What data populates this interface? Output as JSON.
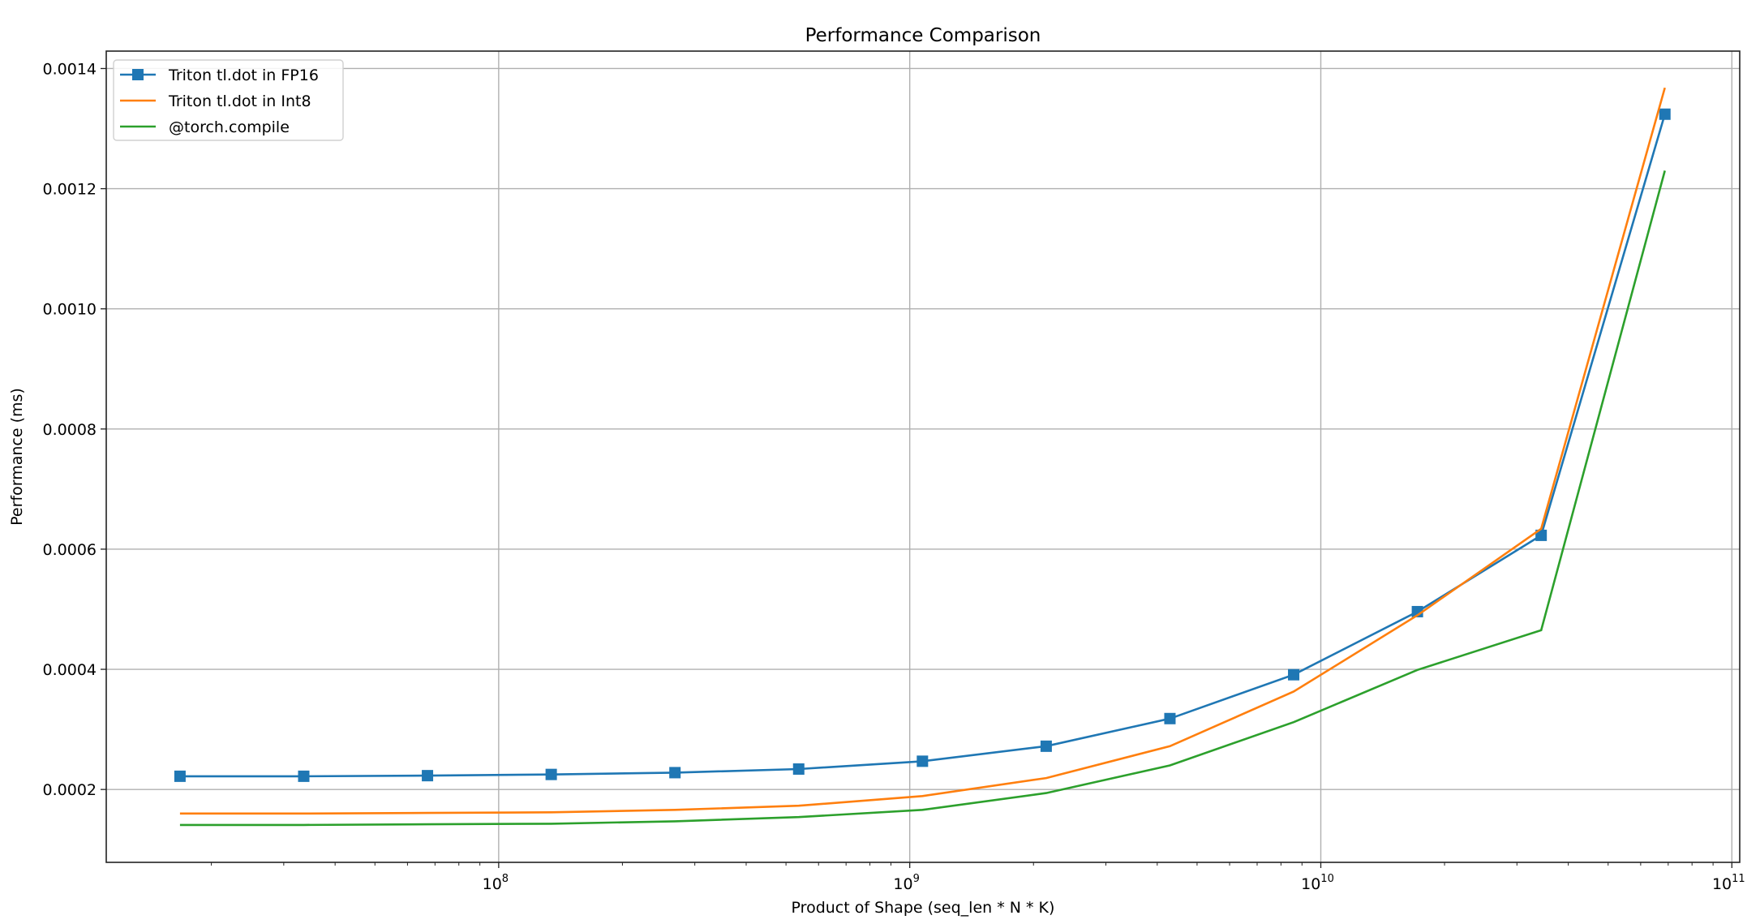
{
  "chart_data": {
    "type": "line",
    "title": "Performance Comparison",
    "xlabel": "Product of Shape (seq_len * N * K)",
    "ylabel": "Performance (ms)",
    "xscale": "log",
    "xlim": [
      11100000,
      104500000000
    ],
    "ylim": [
      7.87e-05,
      0.001429
    ],
    "grid": true,
    "legend_position": "top-left",
    "x_ticks": [
      100000000,
      1000000000,
      10000000000,
      100000000000
    ],
    "x_tick_labels": [
      {
        "base": "10",
        "exp": "8"
      },
      {
        "base": "10",
        "exp": "9"
      },
      {
        "base": "10",
        "exp": "10"
      },
      {
        "base": "10",
        "exp": "11"
      }
    ],
    "y_ticks": [
      0.0002,
      0.0004,
      0.0006,
      0.0008,
      0.001,
      0.0012,
      0.0014
    ],
    "y_tick_labels": [
      "0.0002",
      "0.0004",
      "0.0006",
      "0.0008",
      "0.0010",
      "0.0012",
      "0.0014"
    ],
    "x": [
      16777216,
      33554432,
      67108864,
      134217728,
      268435456,
      536870912,
      1073741824,
      2147483648,
      4294967296,
      8589934592,
      17179869184,
      34359738368,
      68719476736
    ],
    "series": [
      {
        "name": "Triton tl.dot in FP16",
        "color": "#1f77b4",
        "marker": "square",
        "values": [
          0.000222,
          0.000222,
          0.000223,
          0.000225,
          0.000228,
          0.000234,
          0.000247,
          0.000272,
          0.000318,
          0.000391,
          0.000496,
          0.000623,
          0.001324
        ]
      },
      {
        "name": "Triton tl.dot in Int8",
        "color": "#ff7f0e",
        "marker": "none",
        "values": [
          0.00016,
          0.00016,
          0.000161,
          0.000162,
          0.000166,
          0.000173,
          0.000189,
          0.000219,
          0.000272,
          0.000363,
          0.00049,
          0.000634,
          0.001368
        ]
      },
      {
        "name": "@torch.compile",
        "color": "#2ca02c",
        "marker": "none",
        "values": [
          0.000141,
          0.000141,
          0.000142,
          0.000143,
          0.000147,
          0.000154,
          0.000166,
          0.000194,
          0.00024,
          0.000312,
          0.000399,
          0.000465,
          0.00123
        ]
      }
    ]
  }
}
